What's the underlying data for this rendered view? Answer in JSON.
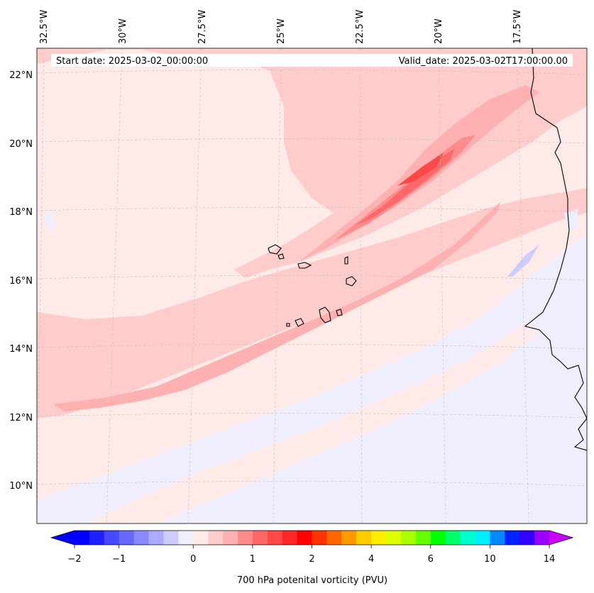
{
  "header": {
    "start_date": "Start date: 2025-03-02_00:00:00",
    "valid_date": "Valid_date: 2025-03-02T17:00:00.00"
  },
  "axes": {
    "longitude_labels": [
      "32.5°W",
      "30°W",
      "27.5°W",
      "25°W",
      "22.5°W",
      "20°W",
      "17.5°W"
    ],
    "latitude_labels": [
      "22°N",
      "20°N",
      "18°N",
      "16°N",
      "14°N",
      "12°N",
      "10°N"
    ],
    "gridlines": true
  },
  "colorbar": {
    "label": "700 hPa potenital vorticity (PVU)",
    "tick_labels": [
      "−2",
      "−1",
      "0",
      "1",
      "2",
      "4",
      "6",
      "10",
      "14"
    ],
    "extend": "both",
    "colors": [
      "#0000ff",
      "#2020ff",
      "#4848ff",
      "#6868ff",
      "#8888ff",
      "#acacff",
      "#ccccff",
      "#eeeeff",
      "#ffeaea",
      "#ffcccc",
      "#ffb0b0",
      "#ff8c8c",
      "#ff6868",
      "#ff4848",
      "#ff2828",
      "#ff0000",
      "#ff3300",
      "#ff6600",
      "#ff9900",
      "#ffcc00",
      "#ffee00",
      "#ddff00",
      "#aaff00",
      "#66ff00",
      "#00ff00",
      "#00ff66",
      "#00ffcc",
      "#00eeff",
      "#0088ff",
      "#0022ff",
      "#3300ff",
      "#9900ff"
    ],
    "under_color": "#0000ff",
    "over_color": "#cc00ff"
  },
  "map": {
    "title": "",
    "background_field_color": "#ffeaea",
    "islands": [
      "Santo Antão",
      "São Vicente",
      "São Nicolau",
      "Sal",
      "Boa Vista",
      "Santiago",
      "Fogo",
      "Brava",
      "Maio"
    ]
  }
}
